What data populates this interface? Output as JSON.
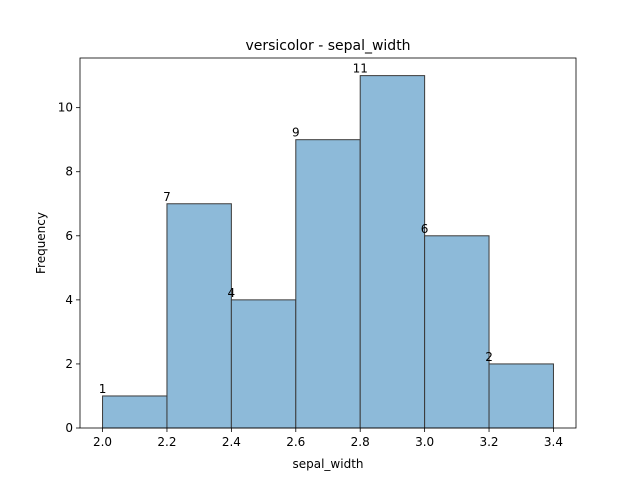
{
  "chart_data": {
    "type": "bar",
    "title": "versicolor - sepal_width",
    "xlabel": "sepal_width",
    "ylabel": "Frequency",
    "bin_edges": [
      2.0,
      2.2,
      2.4,
      2.6,
      2.8,
      3.0,
      3.2,
      3.4
    ],
    "values": [
      1,
      7,
      4,
      9,
      11,
      6,
      2
    ],
    "value_labels": [
      "1",
      "7",
      "4",
      "9",
      "11",
      "6",
      "2"
    ],
    "xlim": [
      1.93,
      3.47
    ],
    "ylim": [
      0,
      11.55
    ],
    "xticks": [
      2.0,
      2.2,
      2.4,
      2.6,
      2.8,
      3.0,
      3.2,
      3.4
    ],
    "xtick_labels": [
      "2.0",
      "2.2",
      "2.4",
      "2.6",
      "2.8",
      "3.0",
      "3.2",
      "3.4"
    ],
    "yticks": [
      0,
      2,
      4,
      6,
      8,
      10
    ],
    "ytick_labels": [
      "0",
      "2",
      "4",
      "6",
      "8",
      "10"
    ],
    "grid": false,
    "colors": {
      "bar_fill": "#8dbad9",
      "bar_edge": "#3a3a3a",
      "axis": "#000000"
    }
  }
}
